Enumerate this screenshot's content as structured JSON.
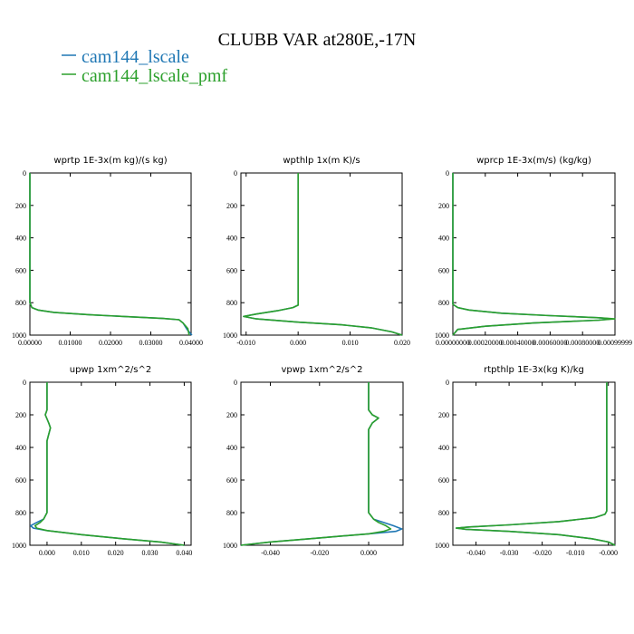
{
  "title": "CLUBB VAR at280E,-17N",
  "legend": [
    {
      "name": "cam144_lscale",
      "color": "#1f77b4"
    },
    {
      "name": "cam144_lscale_pmf",
      "color": "#2ca02c"
    }
  ],
  "chart_data": [
    {
      "type": "line",
      "title": "wprtp  1E-3x(m kg)/(s kg)",
      "xlim": [
        0.0,
        0.04
      ],
      "xticks": [
        "0.00000",
        "0.01000",
        "0.02000",
        "0.03000",
        "0.04000"
      ],
      "xtick_values": [
        0.0,
        0.01,
        0.02,
        0.03,
        0.04
      ],
      "ylim": [
        1000,
        0
      ],
      "yticks": [
        "0",
        "200",
        "400",
        "600",
        "800",
        "1000"
      ],
      "ytick_values": [
        0,
        200,
        400,
        600,
        800,
        1000
      ],
      "series": [
        {
          "name": "cam144_lscale",
          "points": [
            [
              0.0,
              0
            ],
            [
              0.0,
              800
            ],
            [
              0.0005,
              830
            ],
            [
              0.002,
              845
            ],
            [
              0.006,
              860
            ],
            [
              0.015,
              875
            ],
            [
              0.025,
              887
            ],
            [
              0.033,
              897
            ],
            [
              0.037,
              905
            ],
            [
              0.038,
              925
            ],
            [
              0.039,
              965
            ],
            [
              0.0402,
              1000
            ]
          ]
        },
        {
          "name": "cam144_lscale_pmf",
          "points": [
            [
              0.0,
              0
            ],
            [
              0.0,
              800
            ],
            [
              0.0005,
              830
            ],
            [
              0.002,
              845
            ],
            [
              0.006,
              860
            ],
            [
              0.015,
              875
            ],
            [
              0.025,
              887
            ],
            [
              0.033,
              897
            ],
            [
              0.037,
              905
            ],
            [
              0.038,
              925
            ],
            [
              0.0392,
              960
            ],
            [
              0.0395,
              1000
            ]
          ]
        }
      ]
    },
    {
      "type": "line",
      "title": "wpthlp  1x(m K)/s",
      "xlim": [
        -0.011,
        0.02
      ],
      "xticks": [
        "-0.010",
        "0.000",
        "0.010",
        "0.020"
      ],
      "xtick_values": [
        -0.01,
        0.0,
        0.01,
        0.02
      ],
      "ylim": [
        1000,
        0
      ],
      "yticks": [
        "0",
        "200",
        "400",
        "600",
        "800",
        "1000"
      ],
      "ytick_values": [
        0,
        200,
        400,
        600,
        800,
        1000
      ],
      "series": [
        {
          "name": "cam144_lscale",
          "points": [
            [
              0.0,
              0
            ],
            [
              0.0,
              815
            ],
            [
              -0.001,
              830
            ],
            [
              -0.004,
              850
            ],
            [
              -0.008,
              870
            ],
            [
              -0.0105,
              885
            ],
            [
              -0.008,
              900
            ],
            [
              0.0,
              920
            ],
            [
              0.008,
              935
            ],
            [
              0.014,
              955
            ],
            [
              0.018,
              980
            ],
            [
              0.02,
              1000
            ]
          ]
        },
        {
          "name": "cam144_lscale_pmf",
          "points": [
            [
              0.0,
              0
            ],
            [
              0.0,
              815
            ],
            [
              -0.001,
              830
            ],
            [
              -0.004,
              850
            ],
            [
              -0.008,
              870
            ],
            [
              -0.0105,
              885
            ],
            [
              -0.008,
              900
            ],
            [
              0.0,
              920
            ],
            [
              0.008,
              935
            ],
            [
              0.014,
              955
            ],
            [
              0.018,
              980
            ],
            [
              0.02,
              1000
            ]
          ]
        }
      ]
    },
    {
      "type": "line",
      "title": "wprcp  1E-3x(m/s) (kg/kg)",
      "xlim": [
        0.0,
        0.001
      ],
      "xticks": [
        "0.00000000",
        "0.00020000",
        "0.00040000",
        "0.00060000",
        "0.00080000",
        "0.00099999"
      ],
      "xtick_values": [
        0.0,
        0.0002,
        0.0004,
        0.0006,
        0.0008,
        0.001
      ],
      "ylim": [
        1000,
        0
      ],
      "yticks": [
        "0",
        "200",
        "400",
        "600",
        "800",
        "1000"
      ],
      "ytick_values": [
        0,
        200,
        400,
        600,
        800,
        1000
      ],
      "series": [
        {
          "name": "cam144_lscale",
          "points": [
            [
              0.0,
              0
            ],
            [
              0.0,
              810
            ],
            [
              3e-05,
              830
            ],
            [
              0.0001,
              845
            ],
            [
              0.0003,
              865
            ],
            [
              0.0006,
              880
            ],
            [
              0.0009,
              893
            ],
            [
              0.00098,
              900
            ],
            [
              0.0009,
              908
            ],
            [
              0.0005,
              925
            ],
            [
              0.0002,
              945
            ],
            [
              3e-05,
              965
            ],
            [
              0.0,
              1000
            ]
          ]
        },
        {
          "name": "cam144_lscale_pmf",
          "points": [
            [
              0.0,
              0
            ],
            [
              0.0,
              810
            ],
            [
              3e-05,
              830
            ],
            [
              0.0001,
              845
            ],
            [
              0.0003,
              865
            ],
            [
              0.0006,
              880
            ],
            [
              0.0009,
              893
            ],
            [
              0.001,
              900
            ],
            [
              0.0009,
              908
            ],
            [
              0.0005,
              925
            ],
            [
              0.0002,
              945
            ],
            [
              3e-05,
              965
            ],
            [
              0.0,
              1000
            ]
          ]
        }
      ]
    },
    {
      "type": "line",
      "title": "upwp  1xm^2/s^2",
      "xlim": [
        -0.005,
        0.042
      ],
      "xticks": [
        "0.000",
        "0.010",
        "0.020",
        "0.030",
        "0.040"
      ],
      "xtick_values": [
        0.0,
        0.01,
        0.02,
        0.03,
        0.04
      ],
      "ylim": [
        1000,
        0
      ],
      "yticks": [
        "0",
        "200",
        "400",
        "600",
        "800",
        "1000"
      ],
      "ytick_values": [
        0,
        200,
        400,
        600,
        800,
        1000
      ],
      "series": [
        {
          "name": "cam144_lscale",
          "points": [
            [
              0.0,
              0
            ],
            [
              0.0,
              170
            ],
            [
              -0.0005,
              200
            ],
            [
              0.0005,
              250
            ],
            [
              0.001,
              280
            ],
            [
              0.0005,
              320
            ],
            [
              0.0,
              360
            ],
            [
              0.0,
              800
            ],
            [
              -0.001,
              840
            ],
            [
              -0.003,
              860
            ],
            [
              -0.0048,
              880
            ],
            [
              -0.004,
              895
            ],
            [
              0.0,
              910
            ],
            [
              0.01,
              935
            ],
            [
              0.022,
              960
            ],
            [
              0.033,
              980
            ],
            [
              0.04,
              1000
            ]
          ]
        },
        {
          "name": "cam144_lscale_pmf",
          "points": [
            [
              0.0,
              0
            ],
            [
              0.0,
              170
            ],
            [
              -0.0005,
              200
            ],
            [
              0.0005,
              250
            ],
            [
              0.001,
              280
            ],
            [
              0.0005,
              320
            ],
            [
              0.0,
              360
            ],
            [
              0.0,
              800
            ],
            [
              -0.001,
              840
            ],
            [
              -0.002,
              860
            ],
            [
              -0.0035,
              880
            ],
            [
              -0.003,
              895
            ],
            [
              0.0,
              910
            ],
            [
              0.01,
              935
            ],
            [
              0.022,
              960
            ],
            [
              0.033,
              980
            ],
            [
              0.04,
              1000
            ]
          ]
        }
      ]
    },
    {
      "type": "line",
      "title": "vpwp  1xm^2/s^2",
      "xlim": [
        -0.052,
        0.014
      ],
      "xticks": [
        "-0.040",
        "-0.020",
        "0.000"
      ],
      "xtick_values": [
        -0.04,
        -0.02,
        0.0
      ],
      "ylim": [
        1000,
        0
      ],
      "yticks": [
        "0",
        "200",
        "400",
        "600",
        "800",
        "1000"
      ],
      "ytick_values": [
        0,
        200,
        400,
        600,
        800,
        1000
      ],
      "series": [
        {
          "name": "cam144_lscale",
          "points": [
            [
              0.0,
              0
            ],
            [
              0.0,
              170
            ],
            [
              0.0015,
              200
            ],
            [
              0.004,
              220
            ],
            [
              0.0015,
              250
            ],
            [
              0.0,
              290
            ],
            [
              0.0,
              800
            ],
            [
              0.002,
              840
            ],
            [
              0.006,
              860
            ],
            [
              0.01,
              880
            ],
            [
              0.0135,
              900
            ],
            [
              0.011,
              915
            ],
            [
              0.0,
              930
            ],
            [
              -0.02,
              955
            ],
            [
              -0.04,
              980
            ],
            [
              -0.052,
              1000
            ]
          ]
        },
        {
          "name": "cam144_lscale_pmf",
          "points": [
            [
              0.0,
              0
            ],
            [
              0.0,
              170
            ],
            [
              0.0015,
              200
            ],
            [
              0.004,
              220
            ],
            [
              0.0015,
              250
            ],
            [
              0.0,
              290
            ],
            [
              0.0,
              800
            ],
            [
              0.002,
              840
            ],
            [
              0.004,
              860
            ],
            [
              0.007,
              880
            ],
            [
              0.009,
              900
            ],
            [
              0.006,
              915
            ],
            [
              0.0,
              930
            ],
            [
              -0.02,
              955
            ],
            [
              -0.04,
              980
            ],
            [
              -0.052,
              1000
            ]
          ]
        }
      ]
    },
    {
      "type": "line",
      "title": "rtpthlp  1E-3x(kg K)/kg",
      "xlim": [
        -0.047,
        0.002
      ],
      "xticks": [
        "-0.040",
        "-0.030",
        "-0.020",
        "-0.010",
        "-0.000"
      ],
      "xtick_values": [
        -0.04,
        -0.03,
        -0.02,
        -0.01,
        0.0
      ],
      "ylim": [
        1000,
        0
      ],
      "yticks": [
        "0",
        "200",
        "400",
        "600",
        "800",
        "1000"
      ],
      "ytick_values": [
        0,
        200,
        400,
        600,
        800,
        1000
      ],
      "series": [
        {
          "name": "cam144_lscale",
          "points": [
            [
              -0.0005,
              0
            ],
            [
              -0.0005,
              790
            ],
            [
              -0.001,
              810
            ],
            [
              -0.004,
              830
            ],
            [
              -0.015,
              855
            ],
            [
              -0.03,
              875
            ],
            [
              -0.042,
              888
            ],
            [
              -0.046,
              895
            ],
            [
              -0.043,
              902
            ],
            [
              -0.03,
              915
            ],
            [
              -0.015,
              935
            ],
            [
              -0.005,
              960
            ],
            [
              0.0,
              980
            ],
            [
              0.002,
              1000
            ]
          ]
        },
        {
          "name": "cam144_lscale_pmf",
          "points": [
            [
              -0.0005,
              0
            ],
            [
              -0.0005,
              790
            ],
            [
              -0.001,
              810
            ],
            [
              -0.004,
              830
            ],
            [
              -0.015,
              855
            ],
            [
              -0.03,
              875
            ],
            [
              -0.042,
              888
            ],
            [
              -0.046,
              895
            ],
            [
              -0.043,
              902
            ],
            [
              -0.03,
              915
            ],
            [
              -0.015,
              935
            ],
            [
              -0.005,
              960
            ],
            [
              0.0,
              980
            ],
            [
              0.002,
              1000
            ]
          ]
        }
      ]
    }
  ]
}
